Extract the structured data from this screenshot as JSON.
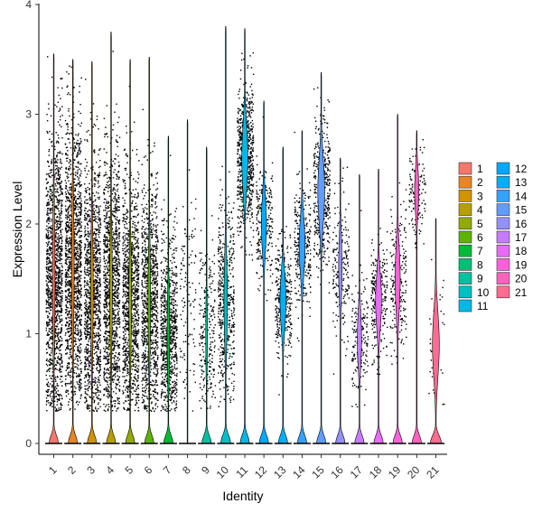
{
  "chart_data": {
    "type": "violin",
    "xlabel": "Identity",
    "ylabel": "Expression Level",
    "ylim": [
      0,
      4
    ],
    "y_ticks": [
      0,
      1,
      2,
      3,
      4
    ],
    "grid": false,
    "legend_position": "right",
    "legend_columns": 2,
    "categories": [
      "1",
      "2",
      "3",
      "4",
      "5",
      "6",
      "7",
      "8",
      "9",
      "10",
      "11",
      "12",
      "13",
      "14",
      "15",
      "16",
      "17",
      "18",
      "19",
      "20",
      "21"
    ],
    "series": [
      {
        "name": "1",
        "color": "#F8766D",
        "max": 3.55,
        "zero_peak": 0.55,
        "upper_center": 1.5,
        "upper_spread": 1.2,
        "upper_width": 0.15,
        "dots": 1400
      },
      {
        "name": "2",
        "color": "#E88526",
        "max": 3.5,
        "zero_peak": 0.55,
        "upper_center": 1.6,
        "upper_spread": 1.2,
        "upper_width": 0.15,
        "dots": 1400
      },
      {
        "name": "3",
        "color": "#D39200",
        "max": 3.48,
        "zero_peak": 0.55,
        "upper_center": 1.4,
        "upper_spread": 1.1,
        "upper_width": 0.15,
        "dots": 1200
      },
      {
        "name": "4",
        "color": "#B79F00",
        "max": 3.75,
        "zero_peak": 0.55,
        "upper_center": 1.4,
        "upper_spread": 1.1,
        "upper_width": 0.15,
        "dots": 1200
      },
      {
        "name": "5",
        "color": "#93AA00",
        "max": 3.5,
        "zero_peak": 0.55,
        "upper_center": 1.3,
        "upper_spread": 1.0,
        "upper_width": 0.15,
        "dots": 1100
      },
      {
        "name": "6",
        "color": "#5EB300",
        "max": 3.52,
        "zero_peak": 0.55,
        "upper_center": 1.3,
        "upper_spread": 1.0,
        "upper_width": 0.15,
        "dots": 1000
      },
      {
        "name": "7",
        "color": "#00BA38",
        "max": 2.8,
        "zero_peak": 0.55,
        "upper_center": 1.0,
        "upper_spread": 0.8,
        "upper_width": 0.15,
        "dots": 800
      },
      {
        "name": "8",
        "color": "#00BF74",
        "max": 2.95,
        "zero_peak": 0.0,
        "upper_center": 1.3,
        "upper_spread": 0.9,
        "upper_width": 0.0,
        "dots": 120
      },
      {
        "name": "9",
        "color": "#00C19F",
        "max": 2.7,
        "zero_peak": 0.55,
        "upper_center": 1.0,
        "upper_spread": 0.7,
        "upper_width": 0.1,
        "dots": 250
      },
      {
        "name": "10",
        "color": "#00BFC4",
        "max": 3.8,
        "zero_peak": 0.6,
        "upper_center": 1.3,
        "upper_spread": 0.8,
        "upper_width": 0.2,
        "dots": 500
      },
      {
        "name": "11",
        "color": "#00B8E7",
        "max": 3.78,
        "zero_peak": 0.55,
        "upper_center": 2.6,
        "upper_spread": 0.6,
        "upper_width": 0.35,
        "dots": 700
      },
      {
        "name": "12",
        "color": "#00A9FF",
        "max": 3.12,
        "zero_peak": 0.55,
        "upper_center": 2.0,
        "upper_spread": 0.5,
        "upper_width": 0.3,
        "dots": 250
      },
      {
        "name": "13",
        "color": "#00B0F6",
        "max": 2.7,
        "zero_peak": 0.55,
        "upper_center": 1.3,
        "upper_spread": 0.5,
        "upper_width": 0.35,
        "dots": 350
      },
      {
        "name": "14",
        "color": "#35A2FF",
        "max": 2.85,
        "zero_peak": 0.55,
        "upper_center": 1.8,
        "upper_spread": 0.5,
        "upper_width": 0.35,
        "dots": 300
      },
      {
        "name": "15",
        "color": "#619CFF",
        "max": 3.38,
        "zero_peak": 0.55,
        "upper_center": 2.3,
        "upper_spread": 0.6,
        "upper_width": 0.4,
        "dots": 450
      },
      {
        "name": "16",
        "color": "#9590FF",
        "max": 2.6,
        "zero_peak": 0.55,
        "upper_center": 1.6,
        "upper_spread": 0.6,
        "upper_width": 0.2,
        "dots": 200
      },
      {
        "name": "17",
        "color": "#C77CFF",
        "max": 2.45,
        "zero_peak": 0.55,
        "upper_center": 0.95,
        "upper_spread": 0.5,
        "upper_width": 0.25,
        "dots": 180
      },
      {
        "name": "18",
        "color": "#E76BF3",
        "max": 2.5,
        "zero_peak": 0.55,
        "upper_center": 1.3,
        "upper_spread": 0.5,
        "upper_width": 0.35,
        "dots": 250
      },
      {
        "name": "19",
        "color": "#FA62DB",
        "max": 3.0,
        "zero_peak": 0.55,
        "upper_center": 1.5,
        "upper_spread": 0.6,
        "upper_width": 0.3,
        "dots": 220
      },
      {
        "name": "20",
        "color": "#FF62BC",
        "max": 2.85,
        "zero_peak": 0.55,
        "upper_center": 2.3,
        "upper_spread": 0.4,
        "upper_width": 0.25,
        "dots": 130
      },
      {
        "name": "21",
        "color": "#FF6C91",
        "max": 2.05,
        "zero_peak": 0.65,
        "upper_center": 0.9,
        "upper_spread": 0.6,
        "upper_width": 0.4,
        "dots": 40
      }
    ]
  }
}
